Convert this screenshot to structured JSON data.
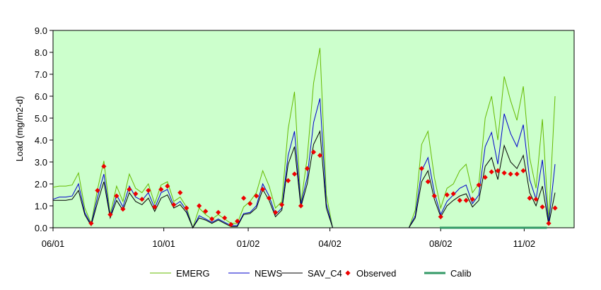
{
  "chart_data": {
    "type": "line",
    "ylabel": "Load (mg/m2-d)",
    "xlabel": "",
    "ylim": [
      0,
      9
    ],
    "yticks": [
      "0.0",
      "1.0",
      "2.0",
      "3.0",
      "4.0",
      "5.0",
      "6.0",
      "7.0",
      "8.0",
      "9.0"
    ],
    "xlim": [
      "2001-06-01",
      "2002-12-27"
    ],
    "xticks": [
      {
        "date": "2001-06-01",
        "label": "06/01"
      },
      {
        "date": "2001-10-01",
        "label": "10/01"
      },
      {
        "date": "2002-01-02",
        "label": "01/02"
      },
      {
        "date": "2002-04-02",
        "label": "04/02"
      },
      {
        "date": "2002-08-02",
        "label": "08/02"
      },
      {
        "date": "2002-11-02",
        "label": "11/02"
      }
    ],
    "grid": false,
    "legend_position": "bottom",
    "background_color": "#ccffcc",
    "series": [
      {
        "name": "EMERG",
        "kind": "line",
        "color": "#66bb00",
        "points": [
          [
            "2001-06-01",
            1.85
          ],
          [
            "2001-06-08",
            1.9
          ],
          [
            "2001-06-15",
            1.9
          ],
          [
            "2001-06-22",
            1.95
          ],
          [
            "2001-06-29",
            2.5
          ],
          [
            "2001-07-06",
            0.9
          ],
          [
            "2001-07-13",
            0.2
          ],
          [
            "2001-07-20",
            1.75
          ],
          [
            "2001-07-27",
            3.05
          ],
          [
            "2001-08-03",
            0.6
          ],
          [
            "2001-08-10",
            1.9
          ],
          [
            "2001-08-17",
            1.2
          ],
          [
            "2001-08-24",
            2.45
          ],
          [
            "2001-08-31",
            1.8
          ],
          [
            "2001-09-07",
            1.6
          ],
          [
            "2001-09-14",
            2.0
          ],
          [
            "2001-09-21",
            1.1
          ],
          [
            "2001-09-28",
            1.95
          ],
          [
            "2001-10-05",
            2.1
          ],
          [
            "2001-10-12",
            1.2
          ],
          [
            "2001-10-19",
            1.4
          ],
          [
            "2001-10-26",
            0.95
          ],
          [
            "2001-11-02",
            0.0
          ],
          [
            "2001-11-09",
            0.9
          ],
          [
            "2001-11-16",
            0.6
          ],
          [
            "2001-11-23",
            0.4
          ],
          [
            "2001-11-30",
            0.6
          ],
          [
            "2001-12-07",
            0.4
          ],
          [
            "2001-12-14",
            0.2
          ],
          [
            "2001-12-21",
            0.2
          ],
          [
            "2001-12-28",
            0.95
          ],
          [
            "2002-01-04",
            1.2
          ],
          [
            "2002-01-11",
            1.6
          ],
          [
            "2002-01-18",
            2.6
          ],
          [
            "2002-01-25",
            1.9
          ],
          [
            "2002-02-01",
            0.9
          ],
          [
            "2002-02-08",
            1.2
          ],
          [
            "2002-02-15",
            4.5
          ],
          [
            "2002-02-22",
            6.2
          ],
          [
            "2002-03-01",
            1.1
          ],
          [
            "2002-03-08",
            3.2
          ],
          [
            "2002-03-15",
            6.6
          ],
          [
            "2002-03-22",
            8.2
          ],
          [
            "2002-03-29",
            1.5
          ],
          [
            "2002-04-05",
            0.0
          ],
          [
            "2002-06-28",
            0.0
          ],
          [
            "2002-07-05",
            0.8
          ],
          [
            "2002-07-12",
            3.8
          ],
          [
            "2002-07-19",
            4.4
          ],
          [
            "2002-07-26",
            2.3
          ],
          [
            "2002-08-02",
            0.9
          ],
          [
            "2002-08-09",
            1.8
          ],
          [
            "2002-08-16",
            2.0
          ],
          [
            "2002-08-23",
            2.6
          ],
          [
            "2002-08-30",
            2.9
          ],
          [
            "2002-09-06",
            1.6
          ],
          [
            "2002-09-13",
            2.0
          ],
          [
            "2002-09-20",
            5.0
          ],
          [
            "2002-09-27",
            6.0
          ],
          [
            "2002-10-04",
            4.0
          ],
          [
            "2002-10-11",
            6.9
          ],
          [
            "2002-10-18",
            5.8
          ],
          [
            "2002-10-25",
            4.9
          ],
          [
            "2002-11-01",
            6.45
          ],
          [
            "2002-11-08",
            3.2
          ],
          [
            "2002-11-15",
            1.8
          ],
          [
            "2002-11-22",
            4.95
          ],
          [
            "2002-11-29",
            0.3
          ],
          [
            "2002-12-06",
            6.0
          ]
        ]
      },
      {
        "name": "NEWS",
        "kind": "line",
        "color": "#0000cc",
        "points": [
          [
            "2001-06-01",
            1.3
          ],
          [
            "2001-06-08",
            1.4
          ],
          [
            "2001-06-15",
            1.4
          ],
          [
            "2001-06-22",
            1.45
          ],
          [
            "2001-06-29",
            2.0
          ],
          [
            "2001-07-06",
            0.7
          ],
          [
            "2001-07-13",
            0.15
          ],
          [
            "2001-07-20",
            1.4
          ],
          [
            "2001-07-27",
            2.45
          ],
          [
            "2001-08-03",
            0.5
          ],
          [
            "2001-08-10",
            1.5
          ],
          [
            "2001-08-17",
            0.95
          ],
          [
            "2001-08-24",
            1.9
          ],
          [
            "2001-08-31",
            1.4
          ],
          [
            "2001-09-07",
            1.25
          ],
          [
            "2001-09-14",
            1.6
          ],
          [
            "2001-09-21",
            0.9
          ],
          [
            "2001-09-28",
            1.6
          ],
          [
            "2001-10-05",
            1.75
          ],
          [
            "2001-10-12",
            1.0
          ],
          [
            "2001-10-19",
            1.2
          ],
          [
            "2001-10-26",
            0.8
          ],
          [
            "2001-11-02",
            0.0
          ],
          [
            "2001-11-09",
            0.55
          ],
          [
            "2001-11-16",
            0.4
          ],
          [
            "2001-11-23",
            0.25
          ],
          [
            "2001-11-30",
            0.4
          ],
          [
            "2001-12-07",
            0.25
          ],
          [
            "2001-12-14",
            0.1
          ],
          [
            "2001-12-21",
            0.1
          ],
          [
            "2001-12-28",
            0.65
          ],
          [
            "2002-01-04",
            0.7
          ],
          [
            "2002-01-11",
            1.0
          ],
          [
            "2002-01-18",
            2.0
          ],
          [
            "2002-01-25",
            1.45
          ],
          [
            "2002-02-01",
            0.6
          ],
          [
            "2002-02-08",
            0.9
          ],
          [
            "2002-02-15",
            3.3
          ],
          [
            "2002-02-22",
            4.4
          ],
          [
            "2002-03-01",
            1.05
          ],
          [
            "2002-03-08",
            2.3
          ],
          [
            "2002-03-15",
            4.8
          ],
          [
            "2002-03-22",
            5.9
          ],
          [
            "2002-03-29",
            1.1
          ],
          [
            "2002-04-05",
            0.0
          ],
          [
            "2002-06-28",
            0.0
          ],
          [
            "2002-07-05",
            0.55
          ],
          [
            "2002-07-12",
            2.6
          ],
          [
            "2002-07-19",
            3.2
          ],
          [
            "2002-07-26",
            1.6
          ],
          [
            "2002-08-02",
            0.6
          ],
          [
            "2002-08-09",
            1.2
          ],
          [
            "2002-08-16",
            1.5
          ],
          [
            "2002-08-23",
            1.8
          ],
          [
            "2002-08-30",
            1.95
          ],
          [
            "2002-09-06",
            1.1
          ],
          [
            "2002-09-13",
            1.5
          ],
          [
            "2002-09-20",
            3.7
          ],
          [
            "2002-09-27",
            4.35
          ],
          [
            "2002-10-04",
            2.9
          ],
          [
            "2002-10-11",
            5.2
          ],
          [
            "2002-10-18",
            4.3
          ],
          [
            "2002-10-25",
            3.7
          ],
          [
            "2002-11-01",
            4.7
          ],
          [
            "2002-11-08",
            2.2
          ],
          [
            "2002-11-15",
            1.3
          ],
          [
            "2002-11-22",
            3.1
          ],
          [
            "2002-11-29",
            0.2
          ],
          [
            "2002-12-06",
            2.9
          ]
        ]
      },
      {
        "name": "SAV_C4",
        "kind": "line",
        "color": "#000000",
        "points": [
          [
            "2001-06-01",
            1.25
          ],
          [
            "2001-06-08",
            1.25
          ],
          [
            "2001-06-15",
            1.25
          ],
          [
            "2001-06-22",
            1.3
          ],
          [
            "2001-06-29",
            1.7
          ],
          [
            "2001-07-06",
            0.6
          ],
          [
            "2001-07-13",
            0.1
          ],
          [
            "2001-07-20",
            1.15
          ],
          [
            "2001-07-27",
            2.1
          ],
          [
            "2001-08-03",
            0.45
          ],
          [
            "2001-08-10",
            1.25
          ],
          [
            "2001-08-17",
            0.8
          ],
          [
            "2001-08-24",
            1.6
          ],
          [
            "2001-08-31",
            1.2
          ],
          [
            "2001-09-07",
            1.05
          ],
          [
            "2001-09-14",
            1.35
          ],
          [
            "2001-09-21",
            0.75
          ],
          [
            "2001-09-28",
            1.35
          ],
          [
            "2001-10-05",
            1.5
          ],
          [
            "2001-10-12",
            0.9
          ],
          [
            "2001-10-19",
            1.05
          ],
          [
            "2001-10-26",
            0.7
          ],
          [
            "2001-11-02",
            0.0
          ],
          [
            "2001-11-09",
            0.45
          ],
          [
            "2001-11-16",
            0.35
          ],
          [
            "2001-11-23",
            0.2
          ],
          [
            "2001-11-30",
            0.35
          ],
          [
            "2001-12-07",
            0.2
          ],
          [
            "2001-12-14",
            0.05
          ],
          [
            "2001-12-21",
            0.05
          ],
          [
            "2001-12-28",
            0.6
          ],
          [
            "2002-01-04",
            0.65
          ],
          [
            "2002-01-11",
            0.9
          ],
          [
            "2002-01-18",
            1.75
          ],
          [
            "2002-01-25",
            1.25
          ],
          [
            "2002-02-01",
            0.5
          ],
          [
            "2002-02-08",
            0.8
          ],
          [
            "2002-02-15",
            2.9
          ],
          [
            "2002-02-22",
            3.7
          ],
          [
            "2002-03-01",
            0.95
          ],
          [
            "2002-03-08",
            2.0
          ],
          [
            "2002-03-15",
            3.8
          ],
          [
            "2002-03-22",
            4.4
          ],
          [
            "2002-03-29",
            0.9
          ],
          [
            "2002-04-05",
            0.0
          ],
          [
            "2002-06-28",
            0.0
          ],
          [
            "2002-07-05",
            0.45
          ],
          [
            "2002-07-12",
            2.1
          ],
          [
            "2002-07-19",
            2.6
          ],
          [
            "2002-07-26",
            1.3
          ],
          [
            "2002-08-02",
            0.5
          ],
          [
            "2002-08-09",
            1.0
          ],
          [
            "2002-08-16",
            1.25
          ],
          [
            "2002-08-23",
            1.45
          ],
          [
            "2002-08-30",
            1.55
          ],
          [
            "2002-09-06",
            0.95
          ],
          [
            "2002-09-13",
            1.25
          ],
          [
            "2002-09-20",
            2.8
          ],
          [
            "2002-09-27",
            3.2
          ],
          [
            "2002-10-04",
            2.2
          ],
          [
            "2002-10-11",
            3.75
          ],
          [
            "2002-10-18",
            3.0
          ],
          [
            "2002-10-25",
            2.7
          ],
          [
            "2002-11-01",
            3.3
          ],
          [
            "2002-11-08",
            1.6
          ],
          [
            "2002-11-15",
            1.0
          ],
          [
            "2002-11-22",
            1.9
          ],
          [
            "2002-11-29",
            0.15
          ],
          [
            "2002-12-06",
            1.6
          ]
        ]
      },
      {
        "name": "Observed",
        "kind": "marker",
        "color": "#ee0000",
        "points": [
          [
            "2001-07-13",
            0.2
          ],
          [
            "2001-07-20",
            1.7
          ],
          [
            "2001-07-27",
            2.8
          ],
          [
            "2001-08-03",
            0.6
          ],
          [
            "2001-08-10",
            1.45
          ],
          [
            "2001-08-17",
            0.85
          ],
          [
            "2001-08-24",
            1.75
          ],
          [
            "2001-08-31",
            1.55
          ],
          [
            "2001-09-07",
            1.3
          ],
          [
            "2001-09-14",
            1.7
          ],
          [
            "2001-09-21",
            0.95
          ],
          [
            "2001-09-28",
            1.75
          ],
          [
            "2001-10-05",
            1.9
          ],
          [
            "2001-10-12",
            1.05
          ],
          [
            "2001-10-19",
            1.6
          ],
          [
            "2001-10-26",
            0.9
          ],
          [
            "2001-11-09",
            1.0
          ],
          [
            "2001-11-16",
            0.75
          ],
          [
            "2001-11-23",
            0.4
          ],
          [
            "2001-11-30",
            0.7
          ],
          [
            "2001-12-07",
            0.45
          ],
          [
            "2001-12-14",
            0.15
          ],
          [
            "2001-12-21",
            0.3
          ],
          [
            "2001-12-28",
            1.35
          ],
          [
            "2002-01-04",
            1.1
          ],
          [
            "2002-01-11",
            1.45
          ],
          [
            "2002-01-18",
            1.75
          ],
          [
            "2002-01-25",
            1.35
          ],
          [
            "2002-02-01",
            0.7
          ],
          [
            "2002-02-08",
            1.05
          ],
          [
            "2002-02-15",
            2.15
          ],
          [
            "2002-02-22",
            2.45
          ],
          [
            "2002-03-01",
            1.0
          ],
          [
            "2002-03-08",
            2.7
          ],
          [
            "2002-03-15",
            3.45
          ],
          [
            "2002-03-22",
            3.3
          ],
          [
            "2002-07-12",
            2.7
          ],
          [
            "2002-07-19",
            2.1
          ],
          [
            "2002-07-26",
            1.45
          ],
          [
            "2002-08-02",
            0.5
          ],
          [
            "2002-08-09",
            1.5
          ],
          [
            "2002-08-16",
            1.55
          ],
          [
            "2002-08-23",
            1.25
          ],
          [
            "2002-08-30",
            1.25
          ],
          [
            "2002-09-06",
            1.3
          ],
          [
            "2002-09-13",
            1.95
          ],
          [
            "2002-09-20",
            2.3
          ],
          [
            "2002-09-27",
            2.55
          ],
          [
            "2002-10-04",
            2.6
          ],
          [
            "2002-10-11",
            2.5
          ],
          [
            "2002-10-18",
            2.45
          ],
          [
            "2002-10-25",
            2.45
          ],
          [
            "2002-11-01",
            2.6
          ],
          [
            "2002-11-08",
            1.35
          ],
          [
            "2002-11-15",
            1.3
          ],
          [
            "2002-11-22",
            0.95
          ],
          [
            "2002-11-29",
            0.2
          ],
          [
            "2002-12-06",
            0.9
          ]
        ]
      },
      {
        "name": "Calib",
        "kind": "line",
        "color": "#339966",
        "points": [
          [
            "2002-08-01",
            0.0
          ],
          [
            "2002-11-27",
            0.0
          ]
        ]
      }
    ]
  }
}
